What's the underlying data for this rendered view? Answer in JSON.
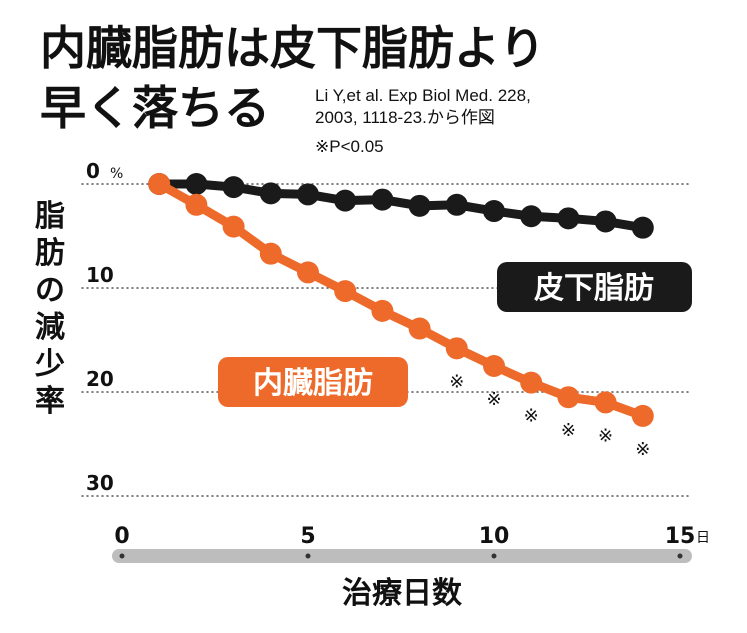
{
  "headline": {
    "line1": "内臓脂肪は皮下脂肪より",
    "line2": "早く落ちる"
  },
  "citation": {
    "line1": "Li Y,et al. Exp Biol Med. 228,",
    "line2": "2003, 1118-23.から作図",
    "line3": "※P<0.05"
  },
  "chart_data": {
    "type": "line",
    "ylabel": "脂肪の減少率",
    "ylabel_chars": [
      "脂",
      "肪",
      "の",
      "減",
      "少",
      "率"
    ],
    "xlabel": "治療日数",
    "y_unit": "%",
    "x_unit": "日",
    "ylim": [
      0,
      30
    ],
    "y_inverted": true,
    "xlim": [
      0,
      15
    ],
    "y_ticks": [
      "0",
      "10",
      "20",
      "30"
    ],
    "x_ticks": [
      "0",
      "5",
      "10",
      "15"
    ],
    "grid": "horizontal dotted",
    "significance_marker": "※",
    "significant_days": [
      9,
      10,
      11,
      12,
      13,
      14
    ],
    "series": [
      {
        "name": "皮下脂肪",
        "color": "#1a1a1a",
        "x": [
          1,
          2,
          3,
          4,
          5,
          6,
          7,
          8,
          9,
          10,
          11,
          12,
          13,
          14
        ],
        "values": [
          0,
          0,
          0.3,
          0.9,
          1.0,
          1.6,
          1.5,
          2.1,
          2.0,
          2.6,
          3.1,
          3.3,
          3.6,
          4.2
        ]
      },
      {
        "name": "内臓脂肪",
        "color": "#ee6a2a",
        "x": [
          1,
          2,
          3,
          4,
          5,
          6,
          7,
          8,
          9,
          10,
          11,
          12,
          13,
          14
        ],
        "values": [
          0,
          2.0,
          4.1,
          6.7,
          8.5,
          10.3,
          12.2,
          13.9,
          15.8,
          17.5,
          19.1,
          20.5,
          21.0,
          22.3
        ]
      }
    ]
  }
}
